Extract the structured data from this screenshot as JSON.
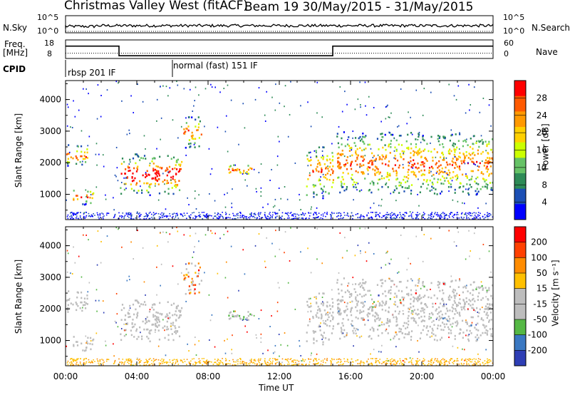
{
  "header": {
    "title": "Christmas Valley West (fitACF)",
    "subtitle": "Beam 19 30/May/2015 - 31/May/2015"
  },
  "aux_panel": {
    "nsky_label": "N.Sky",
    "nsearch_label": "N.Search",
    "freq_label_1": "Freq.",
    "freq_label_2": "[MHz]",
    "nave_label": "Nave",
    "cpid_label": "CPID",
    "noise_ticks": [
      "10^5",
      "10^0"
    ],
    "freq_ticks": [
      "18",
      "8"
    ],
    "nave_ticks": [
      "60",
      "0"
    ],
    "cpid_modes": [
      "rbsp 201 IF",
      "normal (fast) 151 IF"
    ]
  },
  "colors": {
    "power_scale": [
      "#0000ff",
      "#1c4fb4",
      "#2e8b57",
      "#66c266",
      "#ccff00",
      "#ffd000",
      "#ff9900",
      "#ff5a00",
      "#ff0000"
    ],
    "velocity_scale": [
      "#2e3eb5",
      "#3a78c2",
      "#55b845",
      "#bdbdbd",
      "#bdbdbd",
      "#ffc000",
      "#ff8c00",
      "#ff4000",
      "#ff0000"
    ],
    "ground_scatter": "#bdbdbd"
  },
  "chart_data": [
    {
      "type": "heatmap",
      "name": "power",
      "ylabel": "Slant Range [km]",
      "yticks": [
        "1000",
        "2000",
        "3000",
        "4000"
      ],
      "ylim": [
        200,
        4600
      ],
      "xlim": [
        "00:00",
        "24:00"
      ],
      "colorbar_label": "Power [dB]",
      "colorbar_ticks": [
        "4",
        "8",
        "12",
        "16",
        "20",
        "24",
        "28"
      ],
      "colorbar_range": [
        0,
        32
      ],
      "echo_regions": [
        {
          "t0": 0.0,
          "t1": 1.2,
          "r0": 1900,
          "r1": 2600
        },
        {
          "t0": 0.4,
          "t1": 1.6,
          "r0": 700,
          "r1": 1200
        },
        {
          "t0": 3.0,
          "t1": 6.5,
          "r0": 1000,
          "r1": 2300
        },
        {
          "t0": 6.6,
          "t1": 7.6,
          "r0": 2500,
          "r1": 3500
        },
        {
          "t0": 9.0,
          "t1": 10.5,
          "r0": 1600,
          "r1": 2000
        },
        {
          "t0": 13.5,
          "t1": 15.0,
          "r0": 900,
          "r1": 2600
        },
        {
          "t0": 15.2,
          "t1": 24.0,
          "r0": 1000,
          "r1": 3000
        }
      ]
    },
    {
      "type": "heatmap",
      "name": "velocity",
      "ylabel": "Slant Range [km]",
      "yticks": [
        "1000",
        "2000",
        "3000",
        "4000"
      ],
      "ylim": [
        200,
        4600
      ],
      "xlabel": "Time UT",
      "xticks": [
        "00:00",
        "04:00",
        "08:00",
        "12:00",
        "16:00",
        "20:00",
        "00:00"
      ],
      "xlim": [
        "00:00",
        "24:00"
      ],
      "colorbar_label": "Velocity [m s⁻¹]",
      "colorbar_ticks": [
        "200",
        "100",
        "50",
        "15",
        "-15",
        "-50",
        "-100",
        "-200"
      ],
      "colorbar_range": [
        -250,
        250
      ]
    }
  ]
}
